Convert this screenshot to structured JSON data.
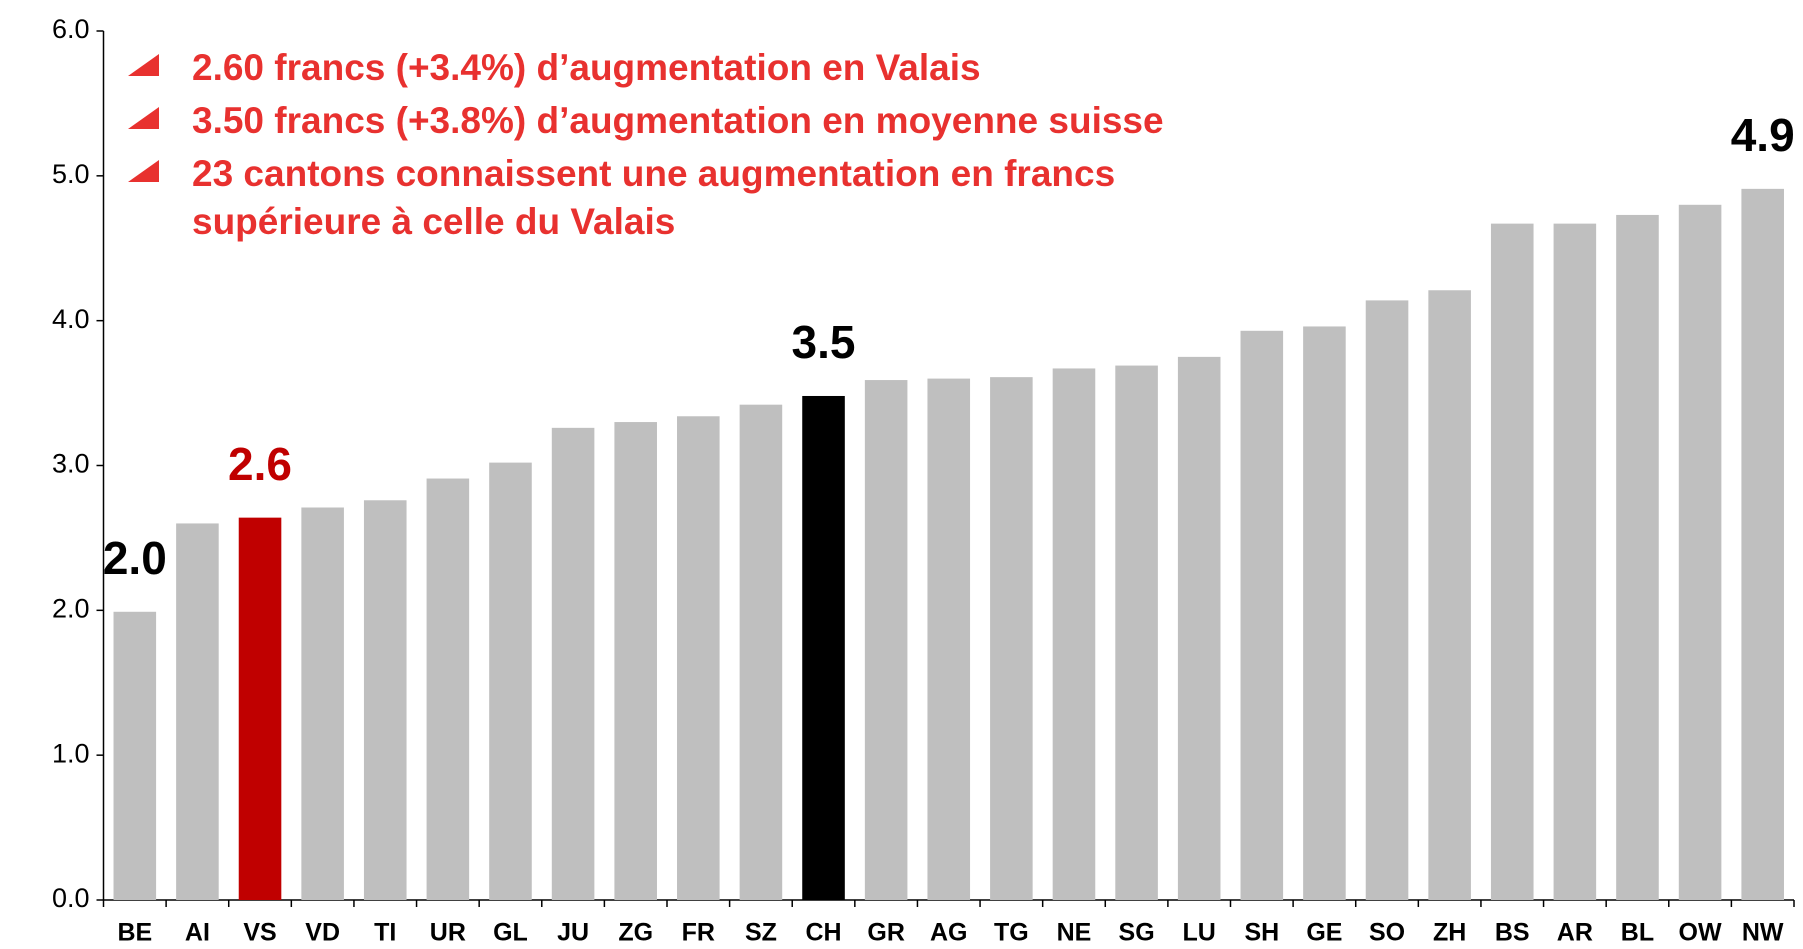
{
  "chart_data": {
    "type": "bar",
    "categories": [
      "BE",
      "AI",
      "VS",
      "VD",
      "TI",
      "UR",
      "GL",
      "JU",
      "ZG",
      "FR",
      "SZ",
      "CH",
      "GR",
      "AG",
      "TG",
      "NE",
      "SG",
      "LU",
      "SH",
      "GE",
      "SO",
      "ZH",
      "BS",
      "AR",
      "BL",
      "OW",
      "NW"
    ],
    "values": [
      1.99,
      2.6,
      2.64,
      2.71,
      2.76,
      2.91,
      3.02,
      3.26,
      3.3,
      3.34,
      3.42,
      3.48,
      3.59,
      3.6,
      3.61,
      3.67,
      3.69,
      3.75,
      3.93,
      3.96,
      4.14,
      4.21,
      4.67,
      4.67,
      4.73,
      4.8,
      4.91
    ],
    "value_labels": [
      "2.0",
      null,
      "2.6",
      null,
      null,
      null,
      null,
      null,
      null,
      null,
      null,
      "3.5",
      null,
      null,
      null,
      null,
      null,
      null,
      null,
      null,
      null,
      null,
      null,
      null,
      null,
      null,
      "4.9"
    ],
    "colors": [
      "#bfbfbf",
      "#bfbfbf",
      "#c00000",
      "#bfbfbf",
      "#bfbfbf",
      "#bfbfbf",
      "#bfbfbf",
      "#bfbfbf",
      "#bfbfbf",
      "#bfbfbf",
      "#bfbfbf",
      "#000000",
      "#bfbfbf",
      "#bfbfbf",
      "#bfbfbf",
      "#bfbfbf",
      "#bfbfbf",
      "#bfbfbf",
      "#bfbfbf",
      "#bfbfbf",
      "#bfbfbf",
      "#bfbfbf",
      "#bfbfbf",
      "#bfbfbf",
      "#bfbfbf",
      "#bfbfbf",
      "#bfbfbf"
    ],
    "ylim": [
      0,
      6
    ],
    "yticks": [
      {
        "value": 0,
        "label": "0.0"
      },
      {
        "value": 1,
        "label": "1.0"
      },
      {
        "value": 2,
        "label": "2.0"
      },
      {
        "value": 3,
        "label": "3.0"
      },
      {
        "value": 4,
        "label": "4.0"
      },
      {
        "value": 5,
        "label": "5.0"
      },
      {
        "value": 6,
        "label": "6.0"
      }
    ],
    "grid": false,
    "notes": [
      [
        "2.60 francs (+3.4%) d’augmentation en Valais"
      ],
      [
        "3.50 francs (+3.8%) d’augmentation en moyenne suisse"
      ],
      [
        "23 cantons connaissent une augmentation en francs",
        "supérieure à celle du Valais"
      ]
    ]
  }
}
